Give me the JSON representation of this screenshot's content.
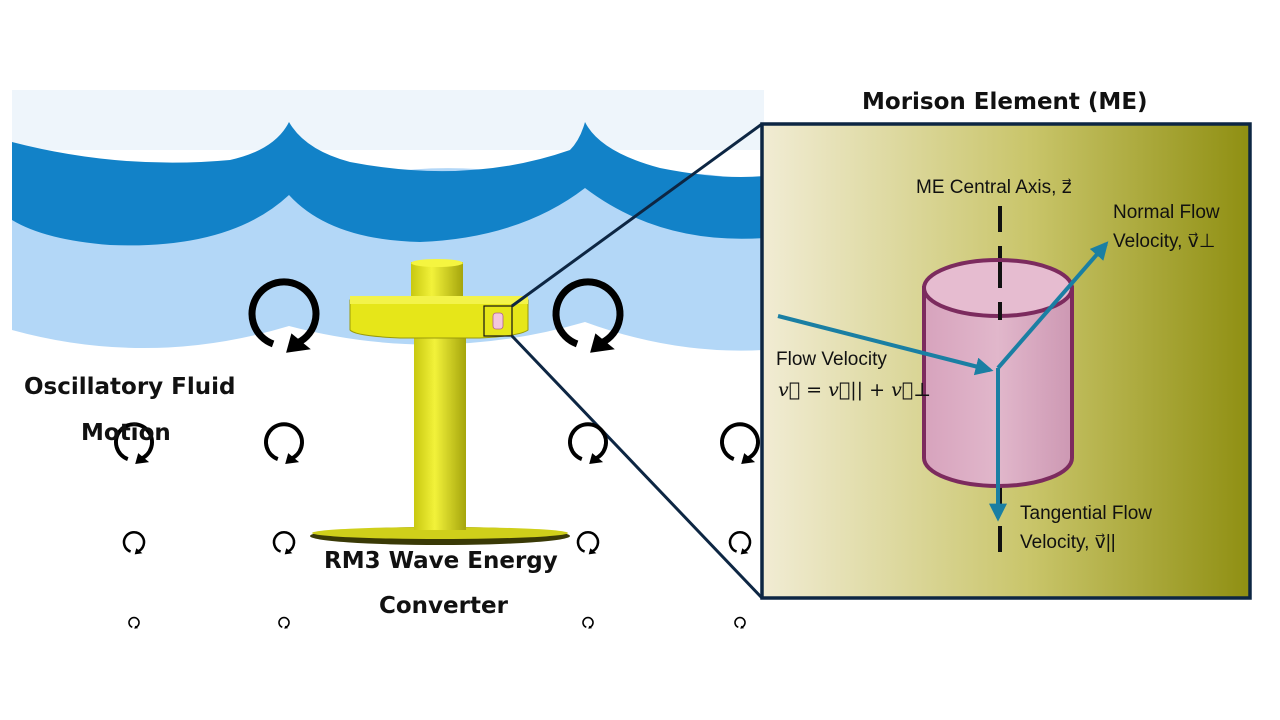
{
  "figure": {
    "title": "Morison Element (ME)",
    "left_label_line1": "Oscillatory Fluid",
    "left_label_line2": "Motion",
    "device_label_line1": "RM3 Wave Energy",
    "device_label_line2": "Converter",
    "axis_label": "ME Central Axis, z⃗",
    "normal_line1": "Normal Flow",
    "normal_line2": "Velocity, v⃗⊥",
    "flow_line1": "Flow Velocity",
    "flow_line2": "v⃗ = v⃗|| + v⃗⊥",
    "tangential_line1": "Tangential Flow",
    "tangential_line2": "Velocity, v⃗||"
  },
  "colors": {
    "wave_dark": "#1282c8",
    "wave_light": "#b3d7f7",
    "device": "#e6e619",
    "cylinder_fill": "#dcaec6",
    "cylinder_edge": "#7c2b5e",
    "arrow": "#1a7fa3",
    "frame": "#0d2643",
    "panel_left": "#f1ecd4",
    "panel_right": "#8f8f12"
  },
  "icons": [
    "rotation-arrow-icon"
  ]
}
